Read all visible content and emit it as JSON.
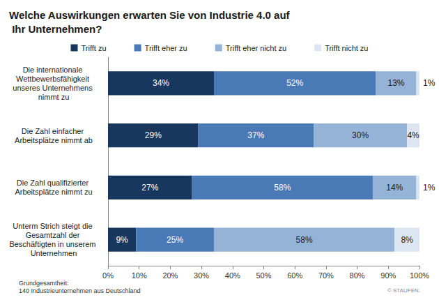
{
  "chart_data": {
    "type": "bar",
    "title": "Welche Auswirkungen erwarten Sie von Industrie 4.0 auf Ihr Unternehmen?",
    "orientation": "horizontal",
    "stacked": true,
    "data_labels": true,
    "grid": false,
    "legend": "top",
    "categories": [
      "Die internationale Wettbewerbsfähigkeit unseres Unternehmens nimmt zu",
      "Die Zahl einfacher Arbeitsplätze nimmt ab",
      "Die Zahl qualifizierter Arbeitsplätze nimmt zu",
      "Unterm Strich steigt die Gesamtzahl der Beschäftigten in unserem Unternehmen"
    ],
    "series": [
      {
        "name": "Trifft zu",
        "color": "#17375e",
        "values": [
          34,
          29,
          27,
          9
        ],
        "value_labels": [
          "34%",
          "29%",
          "27%",
          "9%"
        ]
      },
      {
        "name": "Trifft eher zu",
        "color": "#4a7ab5",
        "values": [
          52,
          37,
          58,
          25
        ],
        "value_labels": [
          "52%",
          "37%",
          "58%",
          "25%"
        ]
      },
      {
        "name": "Trifft eher nicht zu",
        "color": "#95b3d7",
        "values": [
          13,
          30,
          14,
          58
        ],
        "value_labels": [
          "13%",
          "30%",
          "14%",
          "58%"
        ]
      },
      {
        "name": "Trifft nicht zu",
        "color": "#dce6f2",
        "values": [
          1,
          4,
          1,
          8
        ],
        "value_labels": [
          "1%",
          "4%",
          "1%",
          "8%"
        ]
      }
    ],
    "xlim": [
      0,
      100
    ],
    "xticks": [
      {
        "value": 0,
        "label": "0%"
      },
      {
        "value": 10,
        "label": "10%"
      },
      {
        "value": 20,
        "label": "20%"
      },
      {
        "value": 30,
        "label": "30%"
      },
      {
        "value": 40,
        "label": "40%"
      },
      {
        "value": 50,
        "label": "50%"
      },
      {
        "value": 60,
        "label": "60%"
      },
      {
        "value": 70,
        "label": "70%"
      },
      {
        "value": 80,
        "label": "80%"
      },
      {
        "value": 90,
        "label": "90%"
      },
      {
        "value": 100,
        "label": "100%"
      }
    ],
    "annotations": [
      "Grundgesamtheit:\n140 Industrieunternehmen aus Deutschland",
      "© STAUFEN."
    ]
  }
}
